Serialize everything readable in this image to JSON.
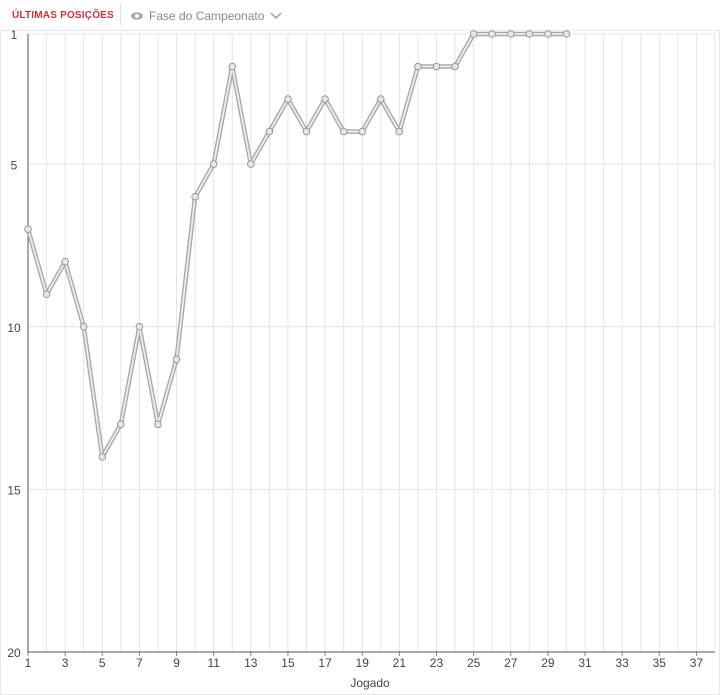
{
  "header": {
    "tabs": [
      "ÚLTIMAS POSIÇÕES",
      "Fase do Campeonato"
    ]
  },
  "chart_data": {
    "type": "line",
    "xlabel": "Jogado",
    "x": [
      1,
      2,
      3,
      4,
      5,
      6,
      7,
      8,
      9,
      10,
      11,
      12,
      13,
      14,
      15,
      16,
      17,
      18,
      19,
      20,
      21,
      22,
      23,
      24,
      25,
      26,
      27,
      28,
      29,
      30
    ],
    "values": [
      7,
      9,
      8,
      10,
      14,
      13,
      10,
      13,
      11,
      6,
      5,
      2,
      5,
      4,
      3,
      4,
      3,
      4,
      4,
      3,
      4,
      2,
      2,
      2,
      1,
      1,
      1,
      1,
      1,
      1
    ],
    "color": "#a8a8a8",
    "xlim": [
      1,
      38
    ],
    "xticks": [
      1,
      3,
      5,
      7,
      9,
      11,
      13,
      15,
      17,
      19,
      21,
      23,
      25,
      27,
      29,
      31,
      33,
      35,
      37
    ],
    "ylim": [
      1,
      20
    ],
    "yticks": [
      1,
      5,
      10,
      15,
      20
    ],
    "y_inverted": true,
    "grid": true
  }
}
